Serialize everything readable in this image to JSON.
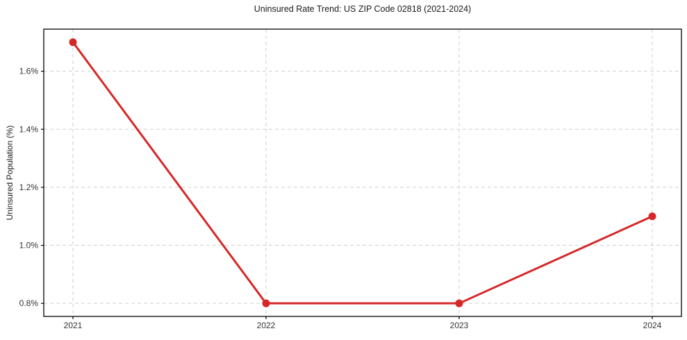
{
  "chart_data": {
    "type": "line",
    "title": "Uninsured Rate Trend: US ZIP Code 02818 (2021-2024)",
    "xlabel": "",
    "ylabel": "Uninsured Population (%)",
    "categories": [
      "2021",
      "2022",
      "2023",
      "2024"
    ],
    "series": [
      {
        "name": "Uninsured Population (%)",
        "values": [
          1.7,
          0.8,
          0.8,
          1.1
        ]
      }
    ],
    "yticks": [
      0.8,
      1.0,
      1.2,
      1.4,
      1.6
    ],
    "ytick_labels": [
      "0.8%",
      "1.0%",
      "1.2%",
      "1.4%",
      "1.6%"
    ],
    "ylim": [
      0.755,
      1.745
    ],
    "grid": true,
    "grid_style": "dashed",
    "legend": "none",
    "colors": {
      "line": "#d62728",
      "marker": "#d62728",
      "grid": "#cfcfcf",
      "axes_border": "#000000",
      "tick_text": "#333333",
      "background": "#ffffff"
    }
  }
}
